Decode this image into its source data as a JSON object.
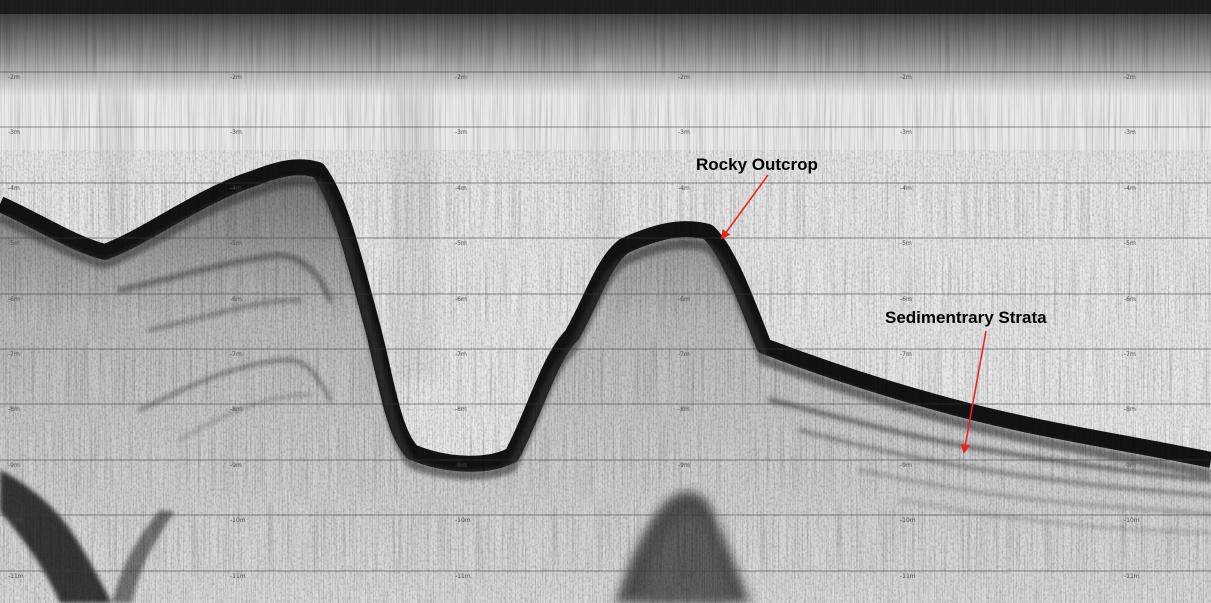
{
  "annotations": {
    "rocky_outcrop": "Rocky Outcrop",
    "sedimentary_strata": "Sedimentrary Strata"
  },
  "depth_scale": {
    "unit": "m",
    "lines": [
      {
        "depth": 2,
        "label": "-2m"
      },
      {
        "depth": 3,
        "label": "-3m"
      },
      {
        "depth": 4,
        "label": "-4m"
      },
      {
        "depth": 5,
        "label": "-5m"
      },
      {
        "depth": 6,
        "label": "-6m"
      },
      {
        "depth": 7,
        "label": "-7m"
      },
      {
        "depth": 8,
        "label": "-8m"
      },
      {
        "depth": 9,
        "label": "-9m"
      },
      {
        "depth": 10,
        "label": "-10m"
      },
      {
        "depth": 11,
        "label": "-11m"
      }
    ]
  },
  "colors": {
    "arrow": "#e8281c",
    "grid": "#3c3c3c",
    "echo_dark": "#141414",
    "water": "#e9e9e9"
  }
}
